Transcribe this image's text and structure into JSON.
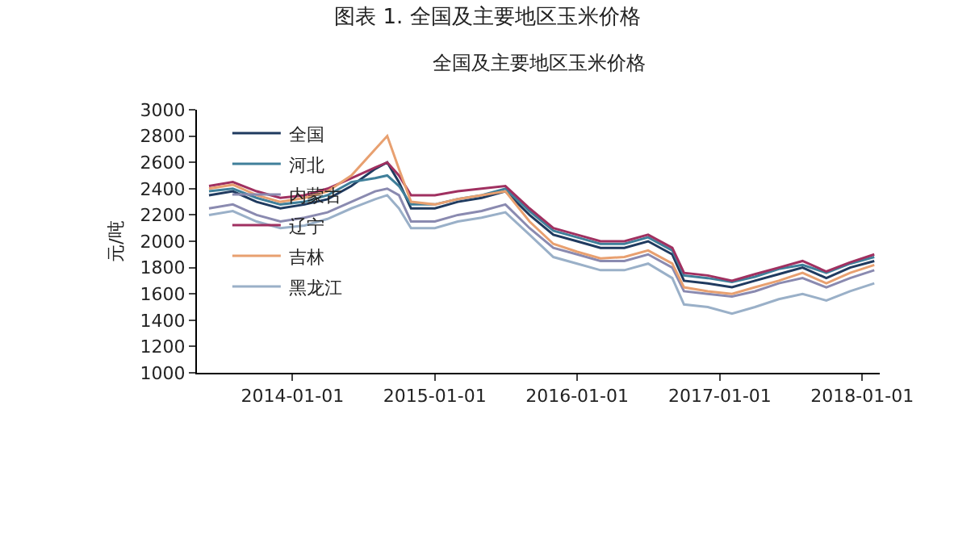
{
  "chart_data": {
    "type": "line",
    "title": "图表 1. 全国及主要地区玉米价格",
    "subtitle": "全国及主要地区玉米价格",
    "ylabel": "元/吨",
    "x": [
      "2013-06",
      "2013-08",
      "2013-10",
      "2013-12",
      "2014-02",
      "2014-04",
      "2014-06",
      "2014-08",
      "2014-09",
      "2014-10",
      "2014-11",
      "2015-01",
      "2015-03",
      "2015-05",
      "2015-07",
      "2015-09",
      "2015-11",
      "2016-01",
      "2016-03",
      "2016-05",
      "2016-07",
      "2016-09",
      "2016-10",
      "2016-12",
      "2017-02",
      "2017-04",
      "2017-06",
      "2017-08",
      "2017-10",
      "2017-12",
      "2018-02"
    ],
    "xlim": [
      "2013-05-01",
      "2018-02-15"
    ],
    "xticks": [
      {
        "value": "2014-01-01",
        "label": "2014-01-01"
      },
      {
        "value": "2015-01-01",
        "label": "2015-01-01"
      },
      {
        "value": "2016-01-01",
        "label": "2016-01-01"
      },
      {
        "value": "2017-01-01",
        "label": "2017-01-01"
      },
      {
        "value": "2018-01-01",
        "label": "2018-01-01"
      }
    ],
    "ylim": [
      1000,
      3000
    ],
    "yticks": [
      1000,
      1200,
      1400,
      1600,
      1800,
      2000,
      2200,
      2400,
      2600,
      2800,
      3000
    ],
    "grid": false,
    "legend": "top left",
    "marker": "none",
    "line_style": "solid",
    "series": [
      {
        "name": "全国",
        "color": "#1f3a5f",
        "values": [
          2350,
          2380,
          2300,
          2250,
          2280,
          2320,
          2420,
          2550,
          2600,
          2450,
          2250,
          2250,
          2300,
          2330,
          2380,
          2200,
          2050,
          2000,
          1950,
          1950,
          2000,
          1900,
          1700,
          1680,
          1650,
          1700,
          1750,
          1800,
          1720,
          1800,
          1850
        ]
      },
      {
        "name": "河北",
        "color": "#3f7f9a",
        "values": [
          2380,
          2400,
          2330,
          2280,
          2300,
          2350,
          2450,
          2480,
          2500,
          2420,
          2280,
          2280,
          2320,
          2350,
          2400,
          2230,
          2080,
          2030,
          1980,
          1980,
          2030,
          1930,
          1740,
          1720,
          1690,
          1730,
          1790,
          1820,
          1760,
          1830,
          1880
        ]
      },
      {
        "name": "内蒙古",
        "color": "#8a8ab0",
        "values": [
          2250,
          2280,
          2200,
          2150,
          2180,
          2220,
          2300,
          2380,
          2400,
          2350,
          2150,
          2150,
          2200,
          2230,
          2280,
          2100,
          1950,
          1900,
          1850,
          1850,
          1900,
          1800,
          1620,
          1600,
          1580,
          1620,
          1680,
          1720,
          1650,
          1720,
          1780
        ]
      },
      {
        "name": "辽宁",
        "color": "#a03060",
        "values": [
          2420,
          2450,
          2380,
          2330,
          2350,
          2400,
          2480,
          2560,
          2600,
          2500,
          2350,
          2350,
          2380,
          2400,
          2420,
          2250,
          2100,
          2050,
          2000,
          2000,
          2050,
          1950,
          1760,
          1740,
          1700,
          1750,
          1800,
          1850,
          1770,
          1840,
          1900
        ]
      },
      {
        "name": "吉林",
        "color": "#e8a070",
        "values": [
          2400,
          2430,
          2350,
          2300,
          2330,
          2380,
          2500,
          2700,
          2800,
          2550,
          2300,
          2280,
          2320,
          2350,
          2380,
          2150,
          1980,
          1920,
          1870,
          1880,
          1930,
          1830,
          1650,
          1620,
          1600,
          1650,
          1700,
          1760,
          1680,
          1760,
          1820
        ]
      },
      {
        "name": "黑龙江",
        "color": "#9ab0c8",
        "values": [
          2200,
          2230,
          2150,
          2100,
          2120,
          2170,
          2250,
          2320,
          2350,
          2250,
          2100,
          2100,
          2150,
          2180,
          2220,
          2050,
          1880,
          1830,
          1780,
          1780,
          1830,
          1720,
          1520,
          1500,
          1450,
          1500,
          1560,
          1600,
          1550,
          1620,
          1680
        ]
      }
    ]
  }
}
